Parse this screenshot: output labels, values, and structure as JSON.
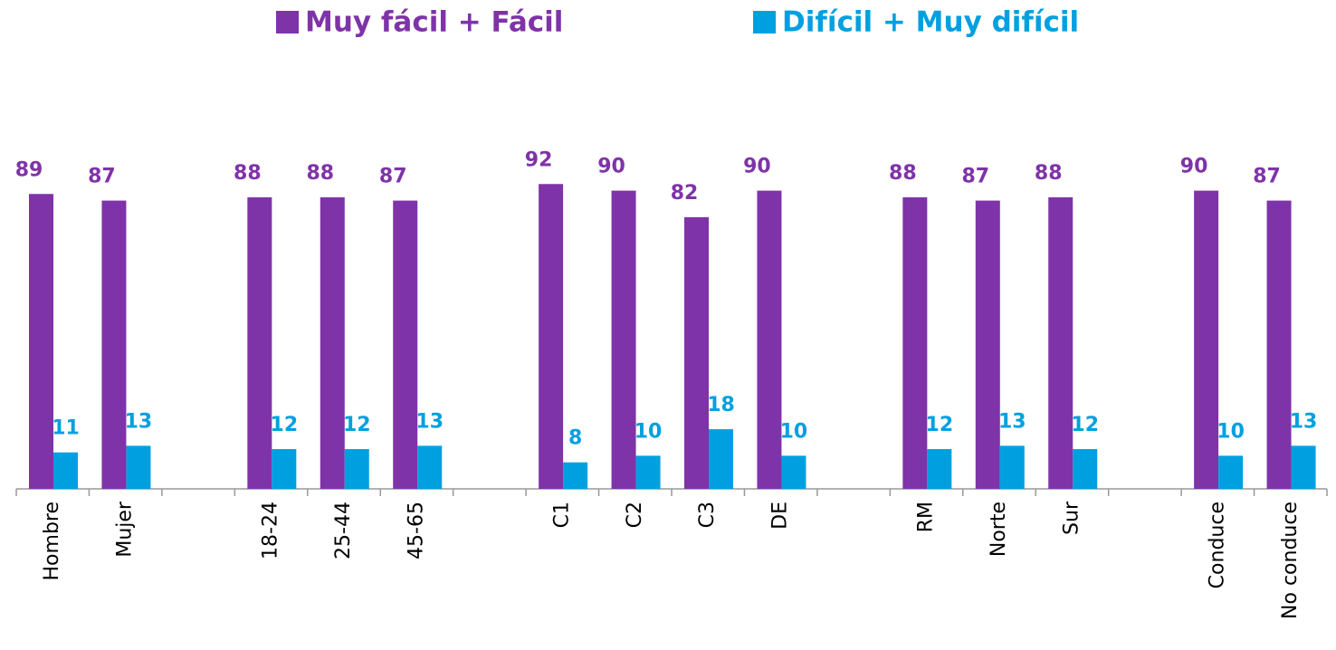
{
  "chart_data": {
    "type": "bar",
    "categories": [
      "Hombre",
      "Mujer",
      null,
      "18-24",
      "25-44",
      "45-65",
      null,
      "C1",
      "C2",
      "C3",
      "DE",
      null,
      "RM",
      "Norte",
      "Sur",
      null,
      "Conduce",
      "No conduce"
    ],
    "series": [
      {
        "name": "Muy fácil + Fácil",
        "color": "#7f33a8",
        "values": [
          89,
          87,
          null,
          88,
          88,
          87,
          null,
          92,
          90,
          82,
          90,
          null,
          88,
          87,
          88,
          null,
          90,
          87
        ]
      },
      {
        "name": "Difícil + Muy difícil",
        "color": "#00a0e0",
        "values": [
          11,
          13,
          null,
          12,
          12,
          13,
          null,
          8,
          10,
          18,
          10,
          null,
          12,
          13,
          12,
          null,
          10,
          13
        ]
      }
    ],
    "ylim": [
      0,
      100
    ],
    "legend": "top"
  }
}
